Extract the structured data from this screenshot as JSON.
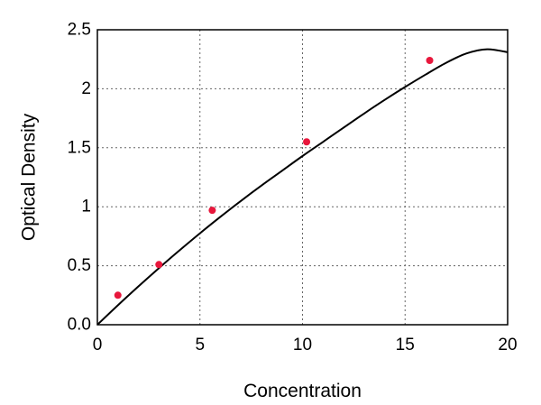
{
  "chart_data": {
    "type": "scatter",
    "title": "",
    "xlabel": "Concentration",
    "ylabel": "Optical Density",
    "xlim": [
      0,
      20
    ],
    "ylim": [
      0,
      2.5
    ],
    "x_ticks": [
      0,
      5,
      10,
      15,
      20
    ],
    "x_tick_labels": [
      "0",
      "5",
      "10",
      "15",
      "20"
    ],
    "y_ticks": [
      0,
      0.5,
      1,
      1.5,
      2,
      2.5
    ],
    "y_tick_labels": [
      "0.0",
      "0.5",
      "1",
      "1.5",
      "2",
      "2.5"
    ],
    "grid": true,
    "legend": "none",
    "series": [
      {
        "kind": "points",
        "color": "#e8173c",
        "x": [
          1,
          3,
          5.6,
          10.2,
          16.2
        ],
        "y": [
          0.25,
          0.51,
          0.97,
          1.55,
          2.24
        ]
      },
      {
        "kind": "fitted-curve",
        "color": "#000000",
        "x": [
          0,
          1,
          2,
          3,
          4,
          5,
          6,
          7,
          8,
          9,
          10,
          11,
          12,
          13,
          14,
          15,
          16,
          17,
          18,
          19,
          20
        ],
        "y": [
          0.0,
          0.165,
          0.325,
          0.48,
          0.63,
          0.775,
          0.915,
          1.05,
          1.18,
          1.305,
          1.43,
          1.55,
          1.67,
          1.79,
          1.905,
          2.015,
          2.12,
          2.22,
          2.3,
          2.335,
          2.31
        ]
      }
    ]
  }
}
